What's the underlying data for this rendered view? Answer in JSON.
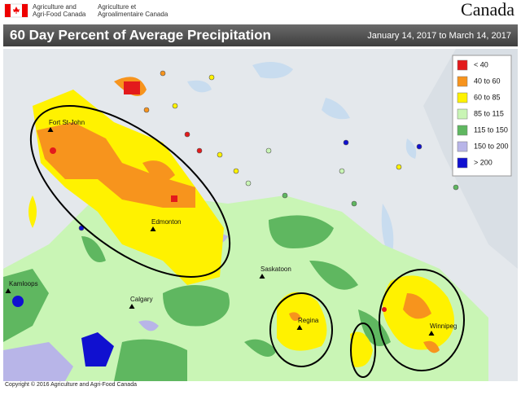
{
  "header": {
    "department_en_line1": "Agriculture and",
    "department_en_line2": "Agri-Food Canada",
    "department_fr_line1": "Agriculture et",
    "department_fr_line2": "Agroalimentaire Canada",
    "wordmark": "Canada"
  },
  "map": {
    "title": "60 Day Percent of Average Precipitation",
    "date_range": "January 14, 2017 to March 14, 2017",
    "legend": [
      {
        "label": "< 40",
        "color": "#e31a1c"
      },
      {
        "label": "40 to 60",
        "color": "#f7941d"
      },
      {
        "label": "60 to 85",
        "color": "#fff200"
      },
      {
        "label": "85 to 115",
        "color": "#c9f5b5"
      },
      {
        "label": "115 to 150",
        "color": "#5fb760"
      },
      {
        "label": "150 to 200",
        "color": "#b8b5e8"
      },
      {
        "label": "> 200",
        "color": "#1010d0"
      }
    ],
    "cities": [
      "Fort St-John",
      "Edmonton",
      "Saskatoon",
      "Kamloops",
      "Calgary",
      "Regina",
      "Winnipeg"
    ],
    "copyright": "Copyright © 2016 Agriculture and Agri-Food Canada"
  }
}
